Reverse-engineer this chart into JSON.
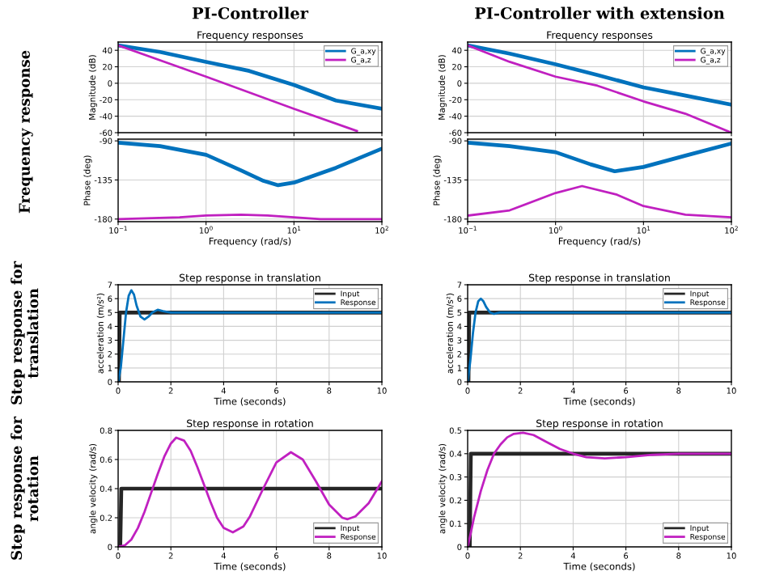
{
  "chart_data": [
    {
      "type": "line",
      "title": "Frequency responses",
      "ylabel": "Magnitude (dB)",
      "log": "x",
      "grid": true,
      "legend": "top right",
      "tick_labels": "y",
      "annotations": [
        "PI-Controller",
        "Frequency response"
      ],
      "xlim": [
        0.1,
        100
      ],
      "xticks": [
        0.1,
        1,
        10,
        100
      ],
      "ylim": [
        -60,
        50
      ],
      "yticks": [
        -60,
        -40,
        -20,
        0,
        20,
        40
      ],
      "series": [
        {
          "name": "G_a,xy",
          "color": "#0072bd",
          "x": [
            0.1,
            0.3,
            1,
            3.1,
            10,
            30,
            100
          ],
          "values": [
            46,
            38,
            26,
            15,
            -2,
            -21,
            -31
          ]
        },
        {
          "name": "G_a,z",
          "color": "#c020c0",
          "x": [
            0.1,
            1,
            10,
            52
          ],
          "values": [
            46,
            8,
            -31,
            -58
          ]
        }
      ]
    },
    {
      "type": "line",
      "title": "Frequency responses",
      "ylabel": "Magnitude (dB)",
      "log": "x",
      "grid": true,
      "legend": "top right",
      "tick_labels": "y",
      "annotations": [
        "PI-Controller with extension"
      ],
      "xlim": [
        0.1,
        100
      ],
      "xticks": [
        0.1,
        1,
        10,
        100
      ],
      "ylim": [
        -60,
        50
      ],
      "yticks": [
        -60,
        -40,
        -20,
        0,
        20,
        40
      ],
      "series": [
        {
          "name": "G_a,xy",
          "color": "#0072bd",
          "x": [
            0.1,
            0.3,
            1,
            3,
            10,
            30,
            100
          ],
          "values": [
            46,
            36,
            23,
            10,
            -5,
            -15,
            -26
          ]
        },
        {
          "name": "G_a,z",
          "color": "#c020c0",
          "x": [
            0.1,
            0.3,
            1,
            3,
            10,
            30,
            100
          ],
          "values": [
            46,
            26,
            8,
            -3,
            -22,
            -37,
            -60
          ]
        }
      ]
    },
    {
      "type": "line",
      "xlabel": "Frequency (rad/s)",
      "ylabel": "Phase (deg)",
      "log": "x",
      "grid": true,
      "xlim": [
        0.1,
        100
      ],
      "xticks": [
        {
          "value": 0.1,
          "label": "10$^{−1}$"
        },
        {
          "value": 1,
          "label": "10$^{0}$"
        },
        {
          "value": 10,
          "label": "10$^{1}$"
        },
        {
          "value": 100,
          "label": "10$^{2}$"
        }
      ],
      "ylim": [
        -183,
        -88
      ],
      "yticks": [
        -180,
        -135,
        -90
      ],
      "series": [
        {
          "color": "#0072bd",
          "x": [
            0.1,
            0.3,
            1,
            2.5,
            4.5,
            6.6,
            10,
            30,
            100
          ],
          "values": [
            -92,
            -96,
            -106,
            -124,
            -136,
            -141,
            -138,
            -121,
            -99
          ]
        },
        {
          "color": "#c020c0",
          "x": [
            0.1,
            0.5,
            1,
            2.5,
            5,
            10,
            20,
            100
          ],
          "values": [
            -180,
            -178,
            -176,
            -175,
            -176,
            -178,
            -180,
            -180
          ]
        }
      ]
    },
    {
      "type": "line",
      "xlabel": "Frequency (rad/s)",
      "ylabel": "Phase (deg)",
      "log": "x",
      "grid": true,
      "xlim": [
        0.1,
        100
      ],
      "xticks": [
        {
          "value": 0.1,
          "label": "10$^{−1}$"
        },
        {
          "value": 1,
          "label": "10$^{0}$"
        },
        {
          "value": 10,
          "label": "10$^{1}$"
        },
        {
          "value": 100,
          "label": "10$^{2}$"
        }
      ],
      "ylim": [
        -183,
        -88
      ],
      "yticks": [
        -180,
        -135,
        -90
      ],
      "series": [
        {
          "color": "#0072bd",
          "x": [
            0.1,
            0.3,
            1,
            2.5,
            4.7,
            10,
            30,
            100
          ],
          "values": [
            -92,
            -96,
            -103,
            -117,
            -125,
            -120,
            -107,
            -93
          ]
        },
        {
          "color": "#c020c0",
          "x": [
            0.1,
            0.3,
            1,
            2,
            5,
            10,
            30,
            100
          ],
          "values": [
            -176,
            -170,
            -150,
            -142,
            -152,
            -165,
            -175,
            -178
          ]
        }
      ]
    },
    {
      "type": "line",
      "title": "Step response in translation",
      "xlabel": "Time (seconds)",
      "ylabel": "acceleration (m/s²)",
      "grid": true,
      "legend": "top right",
      "annotations": [
        "Step response for translation"
      ],
      "xlim": [
        0,
        10
      ],
      "xticks": [
        0,
        2,
        4,
        6,
        8,
        10
      ],
      "ylim": [
        0,
        7
      ],
      "yticks": [
        0,
        1,
        2,
        3,
        4,
        5,
        6,
        7
      ],
      "series": [
        {
          "name": "Input",
          "color": "#262626",
          "x": [
            0,
            0.03,
            0.06,
            10
          ],
          "values": [
            0,
            0,
            5,
            5
          ]
        },
        {
          "name": "Response",
          "color": "#0072bd",
          "x": [
            0,
            0.1,
            0.2,
            0.3,
            0.4,
            0.5,
            0.6,
            0.7,
            0.85,
            1.0,
            1.15,
            1.3,
            1.5,
            1.7,
            2.0,
            2.5,
            10
          ],
          "values": [
            0,
            1.0,
            3.0,
            5.0,
            6.2,
            6.6,
            6.3,
            5.5,
            4.7,
            4.5,
            4.7,
            5.0,
            5.2,
            5.1,
            5.0,
            5.0,
            5.0
          ]
        }
      ]
    },
    {
      "type": "line",
      "title": "Step response in translation",
      "xlabel": "Time (seconds)",
      "ylabel": "acceleration (m/s²)",
      "grid": true,
      "legend": "top right",
      "xlim": [
        0,
        10
      ],
      "xticks": [
        0,
        2,
        4,
        6,
        8,
        10
      ],
      "ylim": [
        0,
        7
      ],
      "yticks": [
        0,
        1,
        2,
        3,
        4,
        5,
        6,
        7
      ],
      "series": [
        {
          "name": "Input",
          "color": "#262626",
          "x": [
            0,
            0.03,
            0.06,
            10
          ],
          "values": [
            0,
            0,
            5,
            5
          ]
        },
        {
          "name": "Response",
          "color": "#0072bd",
          "x": [
            0,
            0.1,
            0.2,
            0.3,
            0.4,
            0.5,
            0.6,
            0.7,
            0.85,
            1.0,
            1.2,
            10
          ],
          "values": [
            0,
            1.5,
            3.5,
            5.0,
            5.8,
            6.0,
            5.8,
            5.4,
            5.0,
            4.9,
            5.0,
            5.0
          ]
        }
      ]
    },
    {
      "type": "line",
      "title": "Step response in rotation",
      "xlabel": "Time (seconds)",
      "ylabel": "angle velocity (rad/s)",
      "grid": true,
      "legend": "bottom right",
      "annotations": [
        "Step response for rotation"
      ],
      "xlim": [
        0,
        10
      ],
      "xticks": [
        0,
        2,
        4,
        6,
        8,
        10
      ],
      "ylim": [
        0,
        0.8
      ],
      "yticks": [
        0,
        0.2,
        0.4,
        0.6,
        0.8
      ],
      "series": [
        {
          "name": "Input",
          "color": "#262626",
          "x": [
            0,
            0.08,
            0.12,
            10
          ],
          "values": [
            0,
            0,
            0.4,
            0.4
          ]
        },
        {
          "name": "Response",
          "color": "#c020c0",
          "x": [
            0,
            0.25,
            0.5,
            0.75,
            1.0,
            1.25,
            1.5,
            1.75,
            2.0,
            2.2,
            2.5,
            2.75,
            3.0,
            3.25,
            3.5,
            3.75,
            4.0,
            4.35,
            4.75,
            5.0,
            5.5,
            6.0,
            6.55,
            7.0,
            7.5,
            8.0,
            8.5,
            8.7,
            9.0,
            9.5,
            10
          ],
          "values": [
            0,
            0.01,
            0.05,
            0.13,
            0.24,
            0.37,
            0.5,
            0.62,
            0.71,
            0.75,
            0.73,
            0.66,
            0.55,
            0.43,
            0.31,
            0.2,
            0.13,
            0.1,
            0.14,
            0.21,
            0.4,
            0.58,
            0.65,
            0.6,
            0.45,
            0.29,
            0.2,
            0.19,
            0.21,
            0.3,
            0.45
          ]
        }
      ]
    },
    {
      "type": "line",
      "title": "Step response in rotation",
      "xlabel": "Time (seconds)",
      "ylabel": "angle velocity (rad/s)",
      "grid": true,
      "legend": "bottom right",
      "xlim": [
        0,
        10
      ],
      "xticks": [
        0,
        2,
        4,
        6,
        8,
        10
      ],
      "ylim": [
        0,
        0.5
      ],
      "yticks": [
        0,
        0.1,
        0.2,
        0.3,
        0.4,
        0.5
      ],
      "series": [
        {
          "name": "Input",
          "color": "#262626",
          "x": [
            0,
            0.08,
            0.12,
            10
          ],
          "values": [
            0,
            0,
            0.4,
            0.4
          ]
        },
        {
          "name": "Response",
          "color": "#c020c0",
          "x": [
            0,
            0.1,
            0.25,
            0.5,
            0.75,
            1.0,
            1.25,
            1.5,
            1.75,
            2.1,
            2.5,
            3.0,
            3.5,
            4.0,
            4.5,
            5.2,
            6.0,
            7.0,
            8,
            9,
            10
          ],
          "values": [
            0,
            0.05,
            0.13,
            0.24,
            0.33,
            0.4,
            0.44,
            0.47,
            0.485,
            0.49,
            0.48,
            0.45,
            0.42,
            0.4,
            0.385,
            0.38,
            0.385,
            0.395,
            0.4,
            0.4,
            0.4
          ]
        }
      ]
    }
  ]
}
